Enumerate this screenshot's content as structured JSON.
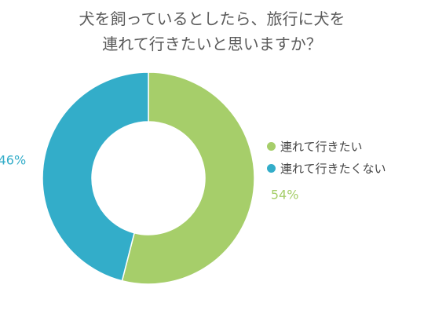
{
  "chart_data": {
    "type": "pie",
    "title_lines": [
      "犬を飼っているとしたら、旅行に犬を",
      "連れて行きたいと思いますか？"
    ],
    "categories": [
      "連れて行きたい",
      "連れて行きたくない"
    ],
    "values": [
      54,
      46
    ],
    "value_labels": [
      "54%",
      "46%"
    ],
    "colors": [
      "#a6ce6a",
      "#33adc9"
    ],
    "legend_position": "right"
  }
}
